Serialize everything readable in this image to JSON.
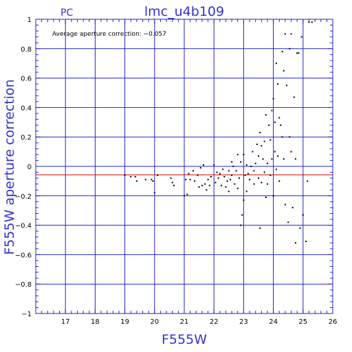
{
  "colors": {
    "axis": "#2222cc",
    "grid": "#2222cc",
    "reference_line": "#dd0000",
    "points": "#000000",
    "titles": "#3333cc"
  },
  "chart_data": {
    "type": "scatter",
    "title": "lmc_u4b109",
    "corner_label": "PC",
    "annotation": "Average aperture correction: −0.057",
    "xlabel": "F555W",
    "ylabel": "F555W aperture correction",
    "xlim": [
      16,
      26
    ],
    "ylim": [
      -1,
      1
    ],
    "x_ticks": [
      16,
      17,
      18,
      19,
      20,
      21,
      22,
      23,
      24,
      25,
      26
    ],
    "y_ticks": [
      -1,
      -0.8,
      -0.6,
      -0.4,
      -0.2,
      0,
      0.2,
      0.4,
      0.6,
      0.8,
      1
    ],
    "x_tick_labels": [
      "",
      "17",
      "18",
      "19",
      "20",
      "21",
      "22",
      "23",
      "24",
      "25",
      "26"
    ],
    "y_tick_labels": [
      "−1",
      "−0.8",
      "−0.6",
      "−0.4",
      "−0.2",
      "0",
      "0.2",
      "0.4",
      "0.6",
      "0.8",
      "1"
    ],
    "grid": true,
    "reference_line": {
      "y": -0.057
    },
    "points": [
      [
        19.0,
        -0.06
      ],
      [
        19.2,
        -0.07
      ],
      [
        19.35,
        -0.07
      ],
      [
        19.4,
        -0.1
      ],
      [
        19.7,
        -0.09
      ],
      [
        19.9,
        -0.09
      ],
      [
        19.95,
        -0.1
      ],
      [
        20.0,
        -0.18
      ],
      [
        20.1,
        -0.06
      ],
      [
        20.55,
        -0.08
      ],
      [
        20.6,
        -0.11
      ],
      [
        20.65,
        -0.13
      ],
      [
        21.0,
        -0.2
      ],
      [
        21.05,
        -0.09
      ],
      [
        21.1,
        -0.19
      ],
      [
        21.15,
        -0.05
      ],
      [
        21.2,
        -0.09
      ],
      [
        21.3,
        -0.03
      ],
      [
        21.35,
        -0.1
      ],
      [
        21.45,
        -0.06
      ],
      [
        21.5,
        -0.14
      ],
      [
        21.55,
        -0.01
      ],
      [
        21.6,
        -0.13
      ],
      [
        21.65,
        0.01
      ],
      [
        21.7,
        -0.12
      ],
      [
        21.75,
        -0.16
      ],
      [
        21.8,
        -0.09
      ],
      [
        21.85,
        -0.13
      ],
      [
        21.9,
        -0.07
      ],
      [
        22.0,
        0.01
      ],
      [
        22.05,
        -0.11
      ],
      [
        22.1,
        -0.04
      ],
      [
        22.15,
        -0.08
      ],
      [
        22.2,
        -0.05
      ],
      [
        22.25,
        -0.13
      ],
      [
        22.3,
        -0.02
      ],
      [
        22.35,
        -0.07
      ],
      [
        22.4,
        -0.14
      ],
      [
        22.45,
        -0.1
      ],
      [
        22.5,
        -0.03
      ],
      [
        22.5,
        -0.17
      ],
      [
        22.55,
        -0.09
      ],
      [
        22.6,
        0.03
      ],
      [
        22.6,
        -0.06
      ],
      [
        22.65,
        0.0
      ],
      [
        22.7,
        -0.12
      ],
      [
        22.75,
        -0.03
      ],
      [
        22.8,
        0.08
      ],
      [
        22.8,
        -0.15
      ],
      [
        22.85,
        -0.08
      ],
      [
        22.9,
        0.03
      ],
      [
        22.9,
        -0.4
      ],
      [
        22.95,
        -0.33
      ],
      [
        23.0,
        -0.23
      ],
      [
        23.0,
        0.08
      ],
      [
        23.05,
        -0.06
      ],
      [
        23.1,
        -0.17
      ],
      [
        23.1,
        0.01
      ],
      [
        23.15,
        -0.05
      ],
      [
        23.2,
        -0.09
      ],
      [
        23.25,
        0.0
      ],
      [
        23.3,
        0.1
      ],
      [
        23.35,
        -0.03
      ],
      [
        23.35,
        -0.12
      ],
      [
        23.4,
        0.02
      ],
      [
        23.45,
        0.15
      ],
      [
        23.5,
        -0.08
      ],
      [
        23.5,
        0.07
      ],
      [
        23.55,
        0.23
      ],
      [
        23.55,
        -0.42
      ],
      [
        23.6,
        -0.11
      ],
      [
        23.6,
        0.14
      ],
      [
        23.65,
        0.05
      ],
      [
        23.7,
        -0.04
      ],
      [
        23.7,
        0.17
      ],
      [
        23.75,
        -0.21
      ],
      [
        23.75,
        0.35
      ],
      [
        23.8,
        -0.12
      ],
      [
        23.8,
        0.02
      ],
      [
        23.85,
        0.28
      ],
      [
        23.9,
        -0.06
      ],
      [
        23.9,
        0.18
      ],
      [
        23.95,
        0.38
      ],
      [
        23.95,
        0.05
      ],
      [
        24.0,
        0.46
      ],
      [
        24.0,
        -0.2
      ],
      [
        24.05,
        0.3
      ],
      [
        24.05,
        0.1
      ],
      [
        24.1,
        0.7
      ],
      [
        24.1,
        -0.02
      ],
      [
        24.15,
        0.56
      ],
      [
        24.15,
        0.07
      ],
      [
        24.2,
        0.33
      ],
      [
        24.2,
        -0.1
      ],
      [
        24.25,
        0.28
      ],
      [
        24.3,
        0.78
      ],
      [
        24.3,
        0.2
      ],
      [
        24.35,
        0.65
      ],
      [
        24.35,
        0.05
      ],
      [
        24.4,
        0.9
      ],
      [
        24.4,
        -0.26
      ],
      [
        24.45,
        0.55
      ],
      [
        24.5,
        -0.38
      ],
      [
        24.55,
        0.2
      ],
      [
        24.55,
        0.8
      ],
      [
        24.6,
        0.9
      ],
      [
        24.6,
        0.1
      ],
      [
        24.65,
        -0.28
      ],
      [
        24.7,
        0.47
      ],
      [
        24.75,
        0.05
      ],
      [
        24.75,
        -0.52
      ],
      [
        24.8,
        0.77
      ],
      [
        24.85,
        0.77
      ],
      [
        24.9,
        -0.42
      ],
      [
        24.95,
        0.88
      ],
      [
        25.0,
        -0.33
      ],
      [
        25.1,
        -0.51
      ],
      [
        25.15,
        -0.1
      ],
      [
        25.2,
        0.98
      ],
      [
        25.3,
        0.98
      ]
    ]
  }
}
